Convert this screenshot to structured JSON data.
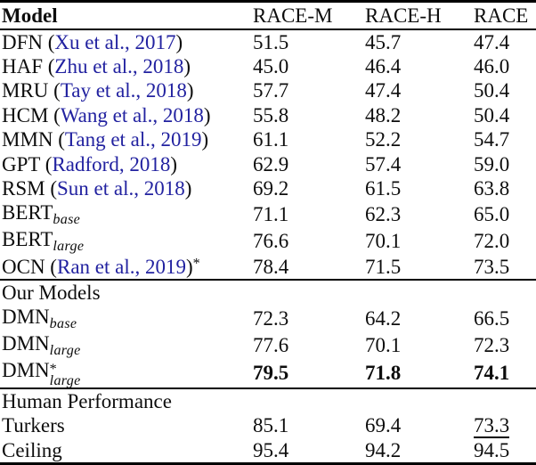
{
  "table": {
    "citation_color": "#2222a0",
    "columns": [
      "Model",
      "RACE-M",
      "RACE-H",
      "RACE"
    ],
    "sections": [
      {
        "title": null,
        "rows": [
          {
            "model": {
              "pre": "DFN (",
              "cite": "Xu et al., 2017",
              "post": ")"
            },
            "values": [
              "51.5",
              "45.7",
              "47.4"
            ]
          },
          {
            "model": {
              "pre": "HAF (",
              "cite": "Zhu et al., 2018",
              "post": ")"
            },
            "values": [
              "45.0",
              "46.4",
              "46.0"
            ]
          },
          {
            "model": {
              "pre": "MRU (",
              "cite": "Tay et al., 2018",
              "post": ")"
            },
            "values": [
              "57.7",
              "47.4",
              "50.4"
            ]
          },
          {
            "model": {
              "pre": "HCM (",
              "cite": "Wang et al., 2018",
              "post": ")"
            },
            "values": [
              "55.8",
              "48.2",
              "50.4"
            ]
          },
          {
            "model": {
              "pre": "MMN (",
              "cite": "Tang et al., 2019",
              "post": ")"
            },
            "values": [
              "61.1",
              "52.2",
              "54.7"
            ]
          },
          {
            "model": {
              "pre": "GPT (",
              "cite": "Radford, 2018",
              "post": ")"
            },
            "values": [
              "62.9",
              "57.4",
              "59.0"
            ]
          },
          {
            "model": {
              "pre": "RSM (",
              "cite": "Sun et al., 2018",
              "post": ")"
            },
            "values": [
              "69.2",
              "61.5",
              "63.8"
            ]
          },
          {
            "model": {
              "pre": "BERT",
              "sub": "base"
            },
            "values": [
              "71.1",
              "62.3",
              "65.0"
            ]
          },
          {
            "model": {
              "pre": "BERT",
              "sub": "large"
            },
            "values": [
              "76.6",
              "70.1",
              "72.0"
            ]
          },
          {
            "model": {
              "pre": "OCN (",
              "cite": "Ran et al., 2019",
              "post": ")",
              "sup": "*"
            },
            "values": [
              "78.4",
              "71.5",
              "73.5"
            ]
          }
        ]
      },
      {
        "title": "Our Models",
        "rows": [
          {
            "model": {
              "pre": "DMN",
              "sub": "base"
            },
            "values": [
              "72.3",
              "64.2",
              "66.5"
            ]
          },
          {
            "model": {
              "pre": "DMN",
              "sub": "large"
            },
            "values": [
              "77.6",
              "70.1",
              "72.3"
            ]
          },
          {
            "model": {
              "pre": "DMN",
              "stack_sup": "*",
              "stack_sub": "large"
            },
            "values": [
              "79.5",
              "71.8",
              "74.1"
            ],
            "bold": true
          }
        ]
      },
      {
        "title": "Human Performance",
        "rows": [
          {
            "model": {
              "pre": "Turkers"
            },
            "values": [
              "85.1",
              "69.4",
              "73.3"
            ],
            "underline_cols": [
              2
            ]
          },
          {
            "model": {
              "pre": "Ceiling"
            },
            "values": [
              "95.4",
              "94.2",
              "94.5"
            ]
          }
        ]
      }
    ]
  }
}
